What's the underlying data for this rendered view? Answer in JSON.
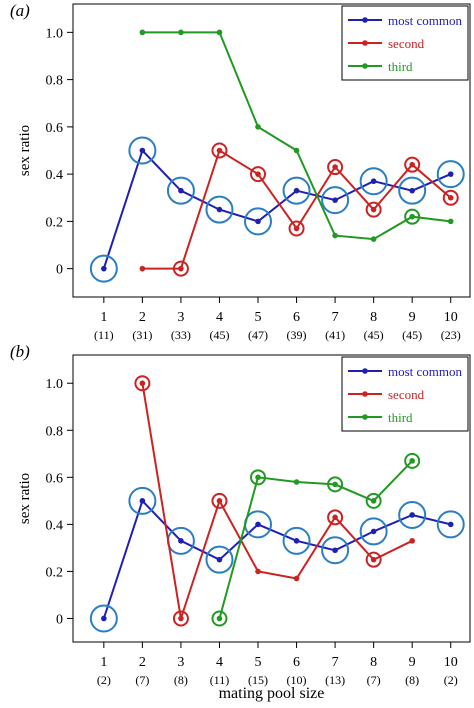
{
  "colors": {
    "most_common": "#1f1fb4",
    "second": "#cc2222",
    "third": "#229922",
    "circle": "#2a7fc4"
  },
  "chart_data": [
    {
      "type": "line",
      "panel_label": "(a)",
      "ylabel": "sex ratio",
      "xlabel": "",
      "x": [
        1,
        2,
        3,
        4,
        5,
        6,
        7,
        8,
        9,
        10
      ],
      "counts": [
        "(11)",
        "(31)",
        "(33)",
        "(45)",
        "(47)",
        "(39)",
        "(41)",
        "(45)",
        "(45)",
        "(23)"
      ],
      "yticks": [
        "0",
        "0.2",
        "0.4",
        "0.6",
        "0.8",
        "1.0"
      ],
      "ylim": [
        -0.12,
        1.12
      ],
      "xlim": [
        0.2,
        10.5
      ],
      "grid": false,
      "legend_position": "top-right",
      "series": [
        {
          "name": "most common",
          "color_key": "most_common",
          "x": [
            1,
            2,
            3,
            4,
            5,
            6,
            7,
            8,
            9,
            10
          ],
          "y": [
            0,
            0.5,
            0.33,
            0.25,
            0.2,
            0.33,
            0.29,
            0.37,
            0.33,
            0.4
          ],
          "circled": [
            1,
            2,
            3,
            4,
            5,
            6,
            7,
            8,
            9,
            10
          ]
        },
        {
          "name": "second",
          "color_key": "second",
          "x": [
            2,
            3,
            4,
            5,
            6,
            7,
            8,
            9,
            10
          ],
          "y": [
            0,
            0,
            0.5,
            0.4,
            0.17,
            0.43,
            0.25,
            0.44,
            0.3
          ],
          "circled": [
            3,
            4,
            5,
            6,
            7,
            8,
            9,
            10
          ]
        },
        {
          "name": "third",
          "color_key": "third",
          "x": [
            2,
            3,
            4,
            5,
            6,
            7,
            8,
            9,
            10
          ],
          "y": [
            1.0,
            1.0,
            1.0,
            0.6,
            0.5,
            0.14,
            0.125,
            0.22,
            0.2
          ],
          "circled": [
            9
          ]
        }
      ]
    },
    {
      "type": "line",
      "panel_label": "(b)",
      "ylabel": "sex ratio",
      "xlabel": "mating pool size",
      "x": [
        1,
        2,
        3,
        4,
        5,
        6,
        7,
        8,
        9,
        10
      ],
      "counts": [
        "(2)",
        "(7)",
        "(8)",
        "(11)",
        "(15)",
        "(10)",
        "(13)",
        "(7)",
        "(8)",
        "(2)"
      ],
      "yticks": [
        "0",
        "0.2",
        "0.4",
        "0.6",
        "0.8",
        "1.0"
      ],
      "ylim": [
        -0.1,
        1.12
      ],
      "xlim": [
        0.2,
        10.5
      ],
      "grid": false,
      "legend_position": "top-right",
      "series": [
        {
          "name": "most common",
          "color_key": "most_common",
          "x": [
            1,
            2,
            3,
            4,
            5,
            6,
            7,
            8,
            9,
            10
          ],
          "y": [
            0,
            0.5,
            0.33,
            0.25,
            0.4,
            0.33,
            0.29,
            0.37,
            0.44,
            0.4
          ],
          "circled": [
            1,
            2,
            3,
            4,
            5,
            6,
            7,
            8,
            9,
            10
          ]
        },
        {
          "name": "second",
          "color_key": "second",
          "x": [
            2,
            3,
            4,
            5,
            6,
            7,
            8,
            9
          ],
          "y": [
            1.0,
            0,
            0.5,
            0.2,
            0.17,
            0.43,
            0.25,
            0.33
          ],
          "circled": [
            2,
            3,
            4,
            7,
            8
          ]
        },
        {
          "name": "third",
          "color_key": "third",
          "x": [
            4,
            5,
            6,
            7,
            8,
            9
          ],
          "y": [
            0,
            0.6,
            0.58,
            0.57,
            0.5,
            0.67
          ],
          "circled": [
            4,
            5,
            7,
            8,
            9
          ]
        }
      ]
    }
  ]
}
